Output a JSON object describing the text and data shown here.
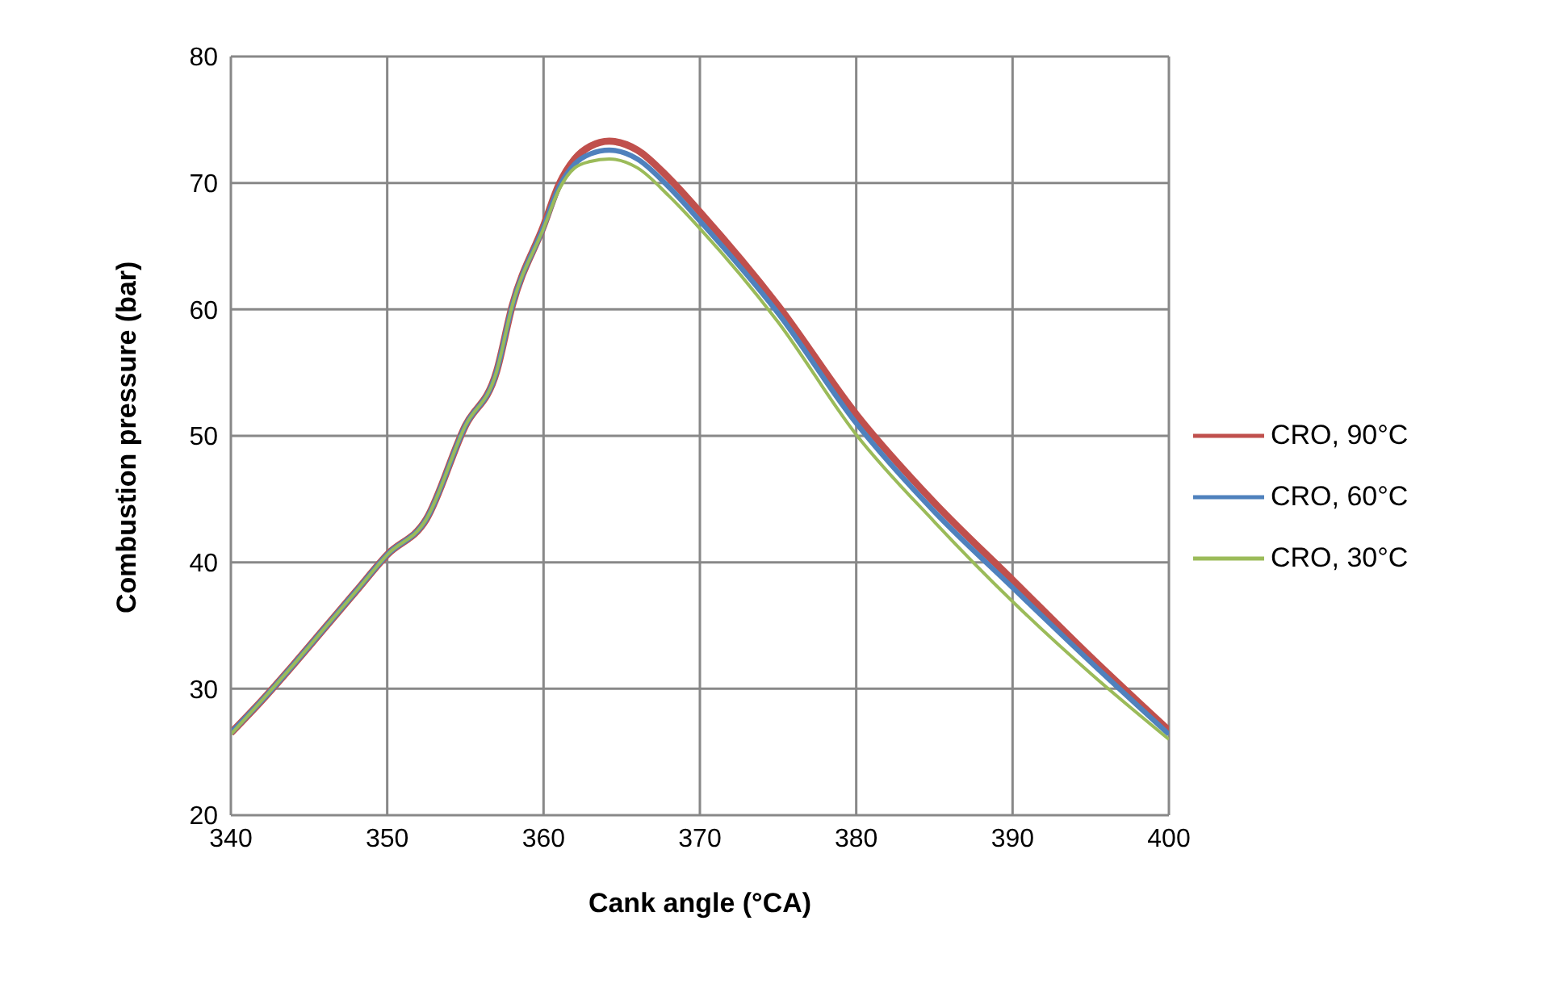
{
  "chart_data": {
    "type": "line",
    "xlabel": "Cank angle (°CA)",
    "ylabel": "Combustion pressure (bar)",
    "x": [
      340,
      342,
      344,
      346,
      348,
      350,
      352.5,
      355,
      357,
      358,
      360,
      361,
      362,
      363,
      364.2,
      366,
      368,
      370,
      375,
      380,
      385,
      390,
      395,
      400
    ],
    "series": [
      {
        "name": "CRO, 90°C",
        "color": "#c0504d",
        "values": [
          26.5,
          29.1,
          31.9,
          34.8,
          37.7,
          40.6,
          43.4,
          50.8,
          55.1,
          60.3,
          66.6,
          69.9,
          71.9,
          72.9,
          73.3,
          72.6,
          70.4,
          67.7,
          60.3,
          51.7,
          44.7,
          38.6,
          32.5,
          26.7
        ]
      },
      {
        "name": "CRO, 60°C",
        "color": "#4f81bd",
        "values": [
          26.5,
          29.1,
          31.9,
          34.8,
          37.7,
          40.6,
          43.4,
          50.8,
          55.1,
          60.3,
          66.5,
          69.7,
          71.5,
          72.3,
          72.6,
          71.9,
          69.7,
          67.0,
          59.7,
          51.0,
          44.0,
          38.0,
          32.1,
          26.4
        ]
      },
      {
        "name": "CRO, 30°C",
        "color": "#9bbb59",
        "values": [
          26.4,
          29.1,
          31.9,
          34.8,
          37.7,
          40.6,
          43.4,
          50.8,
          55.1,
          60.3,
          66.4,
          69.5,
          71.2,
          71.7,
          71.9,
          71.2,
          69.0,
          66.4,
          59.0,
          50.1,
          43.2,
          36.9,
          31.2,
          26.0
        ]
      }
    ],
    "xlim": [
      340,
      400
    ],
    "xticks": [
      340,
      350,
      360,
      370,
      380,
      390,
      400
    ],
    "ylim": [
      20,
      80
    ],
    "yticks": [
      20,
      30,
      40,
      50,
      60,
      70,
      80
    ],
    "grid": true,
    "legend": "right",
    "marker": "none",
    "line_style": "solid"
  }
}
